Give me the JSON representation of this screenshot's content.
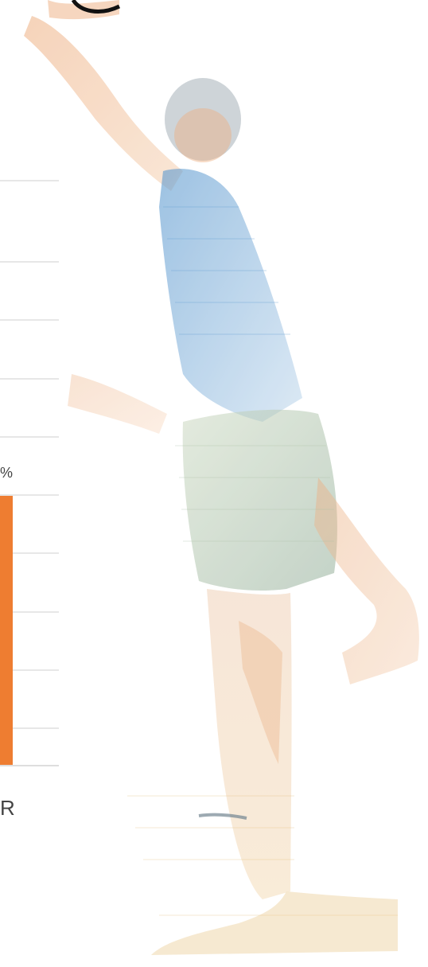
{
  "chart_data": {
    "type": "bar",
    "title": "",
    "xlabel": "",
    "ylabel": "",
    "grid": true,
    "tick_label_pct": "%",
    "category_label_partial": "R",
    "bar_color": "#ee7d31",
    "figure_colors": [
      "#e9a06a",
      "#3d86c6",
      "#9fb596",
      "#e3b76a",
      "#5a6f7d"
    ],
    "series": [
      {
        "name": "",
        "values": [
          null
        ]
      }
    ]
  }
}
